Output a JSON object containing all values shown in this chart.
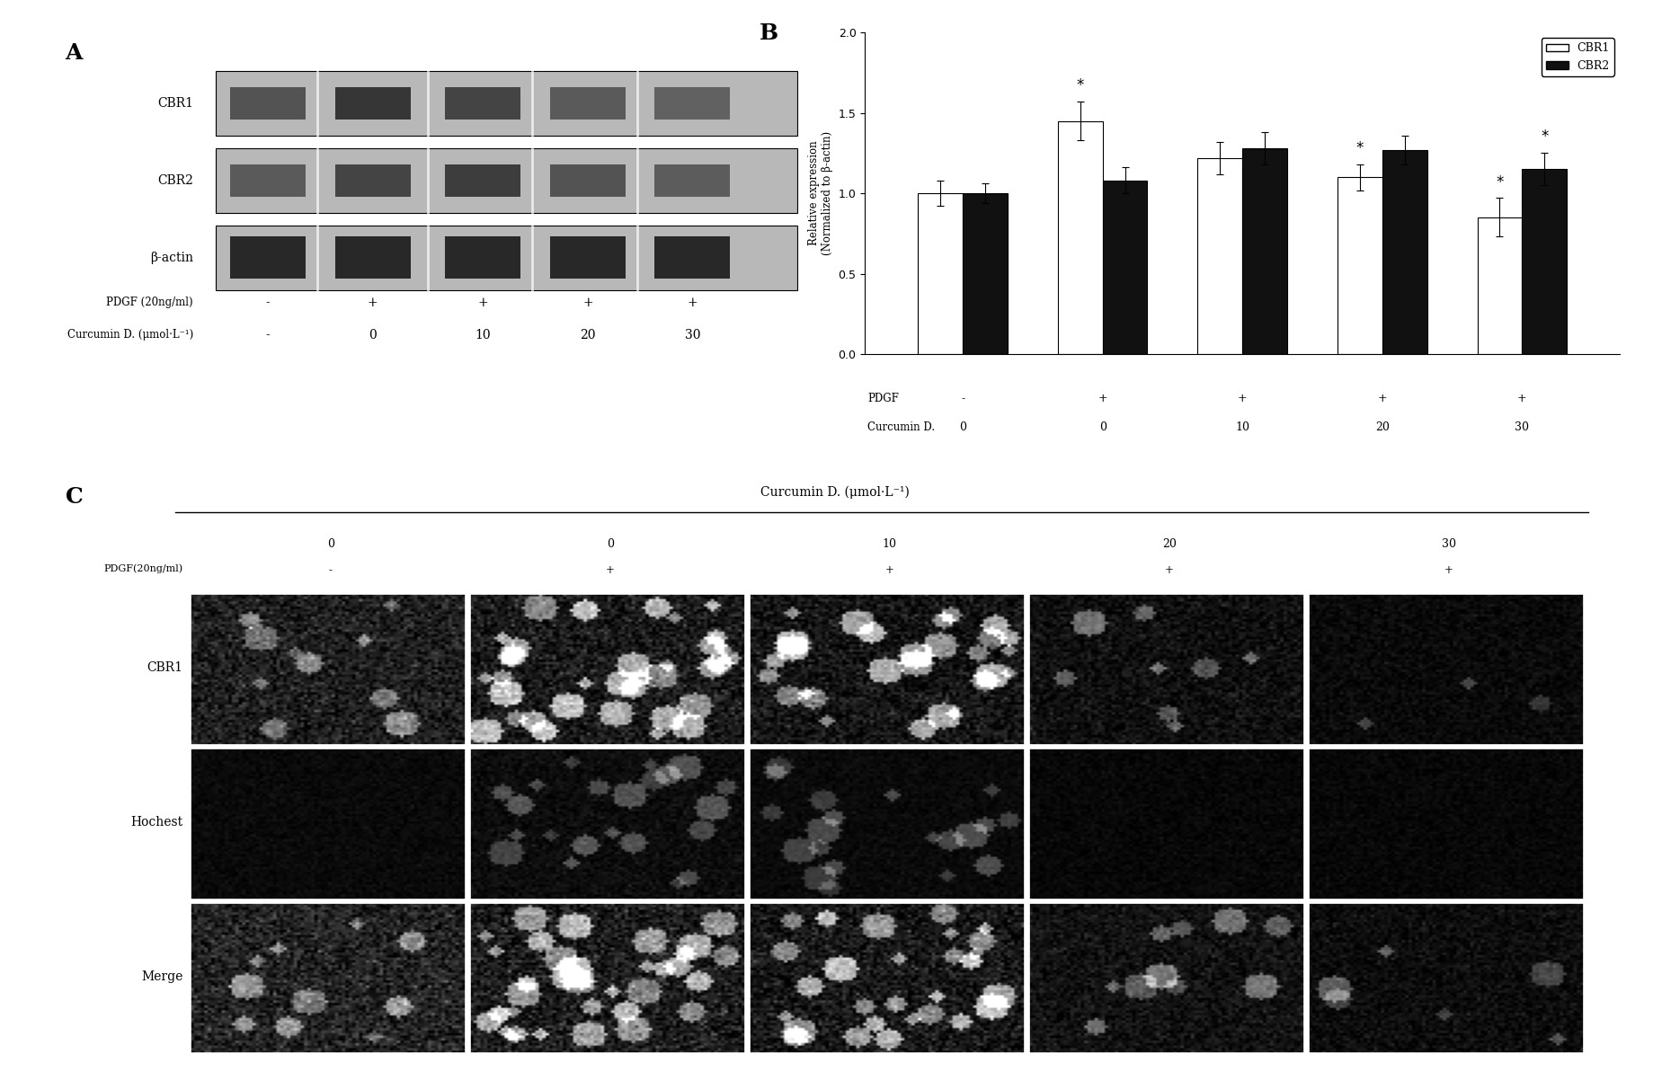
{
  "panel_A_label": "A",
  "panel_B_label": "B",
  "panel_C_label": "C",
  "blot_labels": [
    "CBR1",
    "CBR2",
    "β-actin"
  ],
  "pdgf_row_label": "PDGF (20ng/ml)",
  "curcumin_row_label": "Curcumin D. (μmol·L⁻¹)",
  "pdgf_values": [
    "-",
    "+",
    "+",
    "+",
    "+"
  ],
  "curcumin_values": [
    "-",
    "0",
    "10",
    "20",
    "30"
  ],
  "bar_cbr1": [
    1.0,
    1.45,
    1.22,
    1.1,
    0.85
  ],
  "bar_cbr2": [
    1.0,
    1.08,
    1.28,
    1.27,
    1.15
  ],
  "bar_err_cbr1": [
    0.08,
    0.12,
    0.1,
    0.08,
    0.12
  ],
  "bar_err_cbr2": [
    0.06,
    0.08,
    0.1,
    0.09,
    0.1
  ],
  "star_cbr1": [
    false,
    true,
    false,
    true,
    true
  ],
  "star_cbr2": [
    false,
    false,
    false,
    false,
    true
  ],
  "ylabel_B": "Relative expression\n(Normalized to β-actin)",
  "ylim_B": [
    0.0,
    2.0
  ],
  "yticks_B": [
    0.0,
    0.5,
    1.0,
    1.5,
    2.0
  ],
  "x_pdgf_B": [
    "-",
    "+",
    "+",
    "+",
    "+"
  ],
  "x_curcumin_B": [
    "0",
    "0",
    "10",
    "20",
    "30"
  ],
  "bar_color_cbr1": "#ffffff",
  "bar_color_cbr2": "#111111",
  "bar_edge_color": "#000000",
  "C_title": "Curcumin D. (μmol·L⁻¹)",
  "C_col_labels": [
    "0",
    "0",
    "10",
    "20",
    "30"
  ],
  "C_pdgf_row": [
    "-",
    "+",
    "+",
    "+",
    "+"
  ],
  "C_row_labels": [
    "CBR1",
    "Hochest",
    "Merge"
  ],
  "C_pdgf_label": "PDGF(20ng/ml)"
}
